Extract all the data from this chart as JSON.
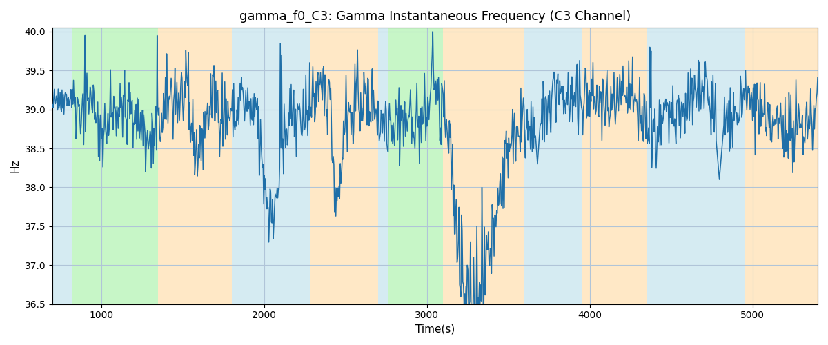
{
  "title": "gamma_f0_C3: Gamma Instantaneous Frequency (C3 Channel)",
  "xlabel": "Time(s)",
  "ylabel": "Hz",
  "xlim": [
    700,
    5400
  ],
  "ylim": [
    36.5,
    40.05
  ],
  "line_color": "#1f6fa8",
  "line_width": 1.1,
  "grid_color": "#b0c4d8",
  "bg_color": "#ffffff",
  "figsize": [
    12.0,
    5.0
  ],
  "dpi": 100,
  "bands": [
    {
      "xmin": 700,
      "xmax": 820,
      "color": "#add8e6",
      "alpha": 0.5
    },
    {
      "xmin": 820,
      "xmax": 1350,
      "color": "#90ee90",
      "alpha": 0.5
    },
    {
      "xmin": 1350,
      "xmax": 1800,
      "color": "#ffd9a0",
      "alpha": 0.6
    },
    {
      "xmin": 1800,
      "xmax": 2280,
      "color": "#add8e6",
      "alpha": 0.5
    },
    {
      "xmin": 2280,
      "xmax": 2700,
      "color": "#ffd9a0",
      "alpha": 0.6
    },
    {
      "xmin": 2700,
      "xmax": 2760,
      "color": "#add8e6",
      "alpha": 0.5
    },
    {
      "xmin": 2760,
      "xmax": 3100,
      "color": "#90ee90",
      "alpha": 0.5
    },
    {
      "xmin": 3100,
      "xmax": 3600,
      "color": "#ffd9a0",
      "alpha": 0.6
    },
    {
      "xmin": 3600,
      "xmax": 3950,
      "color": "#add8e6",
      "alpha": 0.5
    },
    {
      "xmin": 3950,
      "xmax": 4350,
      "color": "#ffd9a0",
      "alpha": 0.6
    },
    {
      "xmin": 4350,
      "xmax": 4950,
      "color": "#add8e6",
      "alpha": 0.5
    },
    {
      "xmin": 4950,
      "xmax": 5400,
      "color": "#ffd9a0",
      "alpha": 0.6
    }
  ],
  "xticks": [
    1000,
    2000,
    3000,
    4000,
    5000
  ],
  "yticks": [
    36.5,
    37.0,
    37.5,
    38.0,
    38.5,
    39.0,
    39.5,
    40.0
  ],
  "seed": 42,
  "n_points": 1200,
  "x_start": 700,
  "x_end": 5400
}
